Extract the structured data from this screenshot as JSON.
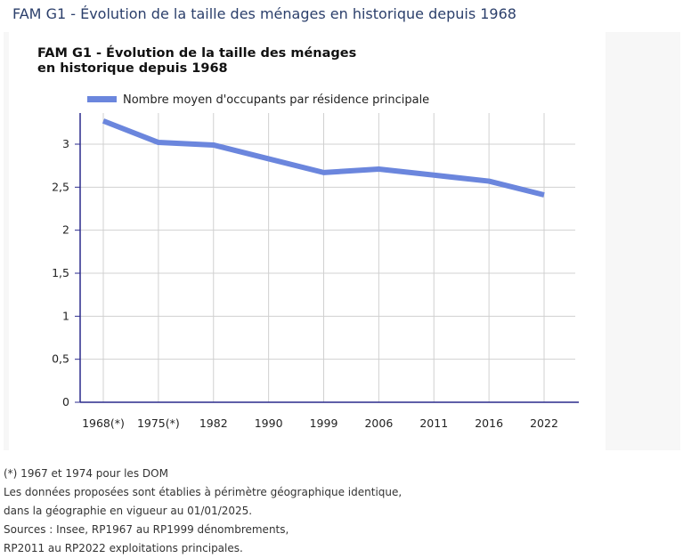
{
  "page": {
    "title": "FAM G1 - Évolution de la taille des ménages en historique depuis 1968"
  },
  "colors": {
    "series": "#6b86dd",
    "axis": "#2a2a8c",
    "grid": "#d0d0d0"
  },
  "chart_data": {
    "type": "line",
    "title": "FAM G1 - Évolution de la taille des ménages en historique depuis 1968",
    "categories": [
      "1968(*)",
      "1975(*)",
      "1982",
      "1990",
      "1999",
      "2006",
      "2011",
      "2016",
      "2022"
    ],
    "series": [
      {
        "name": "Nombre moyen d'occupants par résidence principale",
        "values": [
          3.27,
          3.02,
          2.99,
          2.83,
          2.67,
          2.71,
          2.64,
          2.57,
          2.41
        ]
      }
    ],
    "ylim": [
      0,
      3.3
    ],
    "yticks": [
      {
        "value": 0,
        "label": "0"
      },
      {
        "value": 0.5,
        "label": "0,5"
      },
      {
        "value": 1,
        "label": "1"
      },
      {
        "value": 1.5,
        "label": "1,5"
      },
      {
        "value": 2,
        "label": "2"
      },
      {
        "value": 2.5,
        "label": "2,5"
      },
      {
        "value": 3,
        "label": "3"
      }
    ],
    "grid": true,
    "legend": "top-left"
  },
  "notes": [
    "(*) 1967 et 1974 pour les DOM",
    "Les données proposées sont établies à périmètre géographique identique,",
    "dans la géographie en vigueur au 01/01/2025.",
    "Sources : Insee, RP1967 au RP1999 dénombrements,",
    "RP2011 au RP2022 exploitations principales."
  ]
}
